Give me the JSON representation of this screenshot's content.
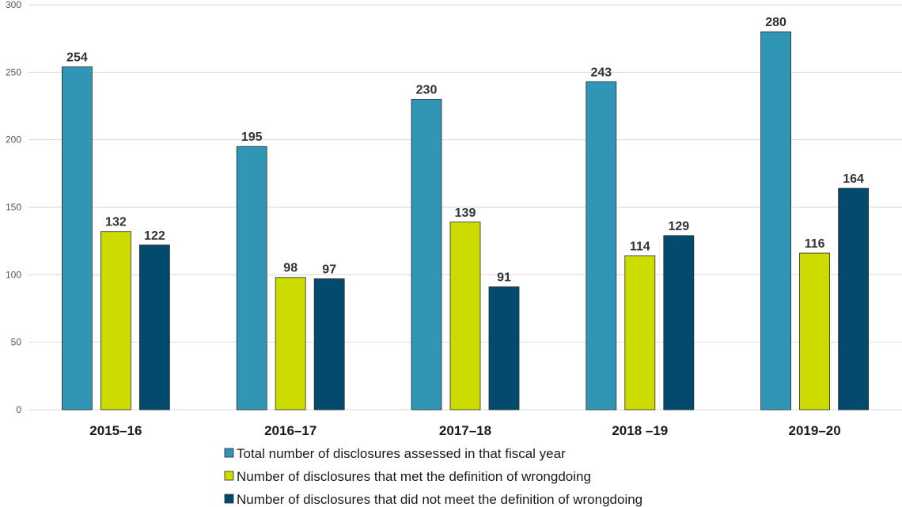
{
  "chart_data": {
    "type": "bar",
    "categories": [
      "2015–16",
      "2016–17",
      "2017–18",
      "2018 –19",
      "2019–20"
    ],
    "series": [
      {
        "name": "Total number of disclosures assessed in that fiscal year",
        "values": [
          254,
          195,
          230,
          243,
          280
        ],
        "color": "#3196b5"
      },
      {
        "name": "Number of disclosures that met the definition of wrongdoing",
        "values": [
          132,
          98,
          139,
          114,
          116
        ],
        "color": "#ccdb00"
      },
      {
        "name": "Number of disclosures that did not meet the definition of wrongdoing",
        "values": [
          122,
          97,
          91,
          129,
          164
        ],
        "color": "#024a6e"
      }
    ],
    "ylim": [
      0,
      300
    ],
    "yticks": [
      0,
      50,
      100,
      150,
      200,
      250,
      300
    ],
    "grid": true,
    "legend_position": "bottom",
    "title": "",
    "xlabel": "",
    "ylabel": ""
  }
}
